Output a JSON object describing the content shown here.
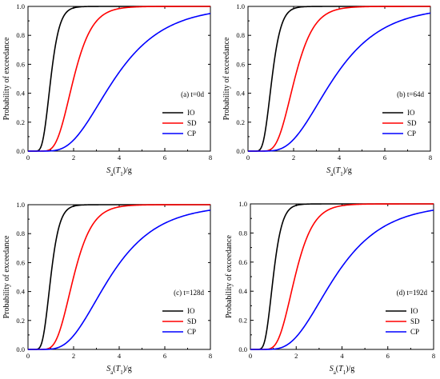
{
  "chart_data": [
    {
      "type": "line",
      "annotation": "(a) t=0d",
      "xlabel": {
        "base": "S",
        "sub1": "a",
        "mid": "(T",
        "sub2": "1",
        "end": ")/g"
      },
      "ylabel": "Probability of  exceedance",
      "xlim": [
        0,
        8
      ],
      "ylim": [
        0,
        1.0
      ],
      "xticks": [
        "0",
        "2",
        "4",
        "6",
        "8"
      ],
      "yticks": [
        "0.0",
        "0.2",
        "0.4",
        "0.6",
        "0.8",
        "1.0"
      ],
      "grid": false,
      "legend_position": "lower-right",
      "series": [
        {
          "name": "IO",
          "color": "#000000",
          "median": 1.0,
          "beta": 0.3
        },
        {
          "name": "SD",
          "color": "#ff0000",
          "median": 2.0,
          "beta": 0.32
        },
        {
          "name": "CP",
          "color": "#0000ff",
          "median": 3.8,
          "beta": 0.45
        }
      ]
    },
    {
      "type": "line",
      "annotation": "(b) t=64d",
      "xlabel": {
        "base": "S",
        "sub1": "a",
        "mid": "(T",
        "sub2": "1",
        "end": ")/g"
      },
      "ylabel": "Probability of  exceedance",
      "xlim": [
        0,
        8
      ],
      "ylim": [
        0,
        1.0
      ],
      "xticks": [
        "0",
        "2",
        "4",
        "6",
        "8"
      ],
      "yticks": [
        "0.0",
        "0.2",
        "0.4",
        "0.6",
        "0.8",
        "1.0"
      ],
      "grid": false,
      "legend_position": "lower-right",
      "series": [
        {
          "name": "IO",
          "color": "#000000",
          "median": 1.05,
          "beta": 0.3
        },
        {
          "name": "SD",
          "color": "#ff0000",
          "median": 2.05,
          "beta": 0.32
        },
        {
          "name": "CP",
          "color": "#0000ff",
          "median": 3.75,
          "beta": 0.45
        }
      ]
    },
    {
      "type": "line",
      "annotation": "(c) t=128d",
      "xlabel": {
        "base": "S",
        "sub1": "a",
        "mid": "(T",
        "sub2": "1",
        "end": ")/g"
      },
      "ylabel": "Probability of  exceedance",
      "xlim": [
        0,
        8
      ],
      "ylim": [
        0,
        1.0
      ],
      "xticks": [
        "0",
        "2",
        "4",
        "6",
        "8"
      ],
      "yticks": [
        "0.0",
        "0.2",
        "0.4",
        "0.6",
        "0.8",
        "1.0"
      ],
      "grid": false,
      "legend_position": "lower-right",
      "series": [
        {
          "name": "IO",
          "color": "#000000",
          "median": 1.0,
          "beta": 0.3
        },
        {
          "name": "SD",
          "color": "#ff0000",
          "median": 2.0,
          "beta": 0.32
        },
        {
          "name": "CP",
          "color": "#0000ff",
          "median": 3.6,
          "beta": 0.45
        }
      ]
    },
    {
      "type": "line",
      "annotation": "(d) t=192d",
      "xlabel": {
        "base": "S",
        "sub1": "a",
        "mid": "(T",
        "sub2": "1",
        "end": ")/g"
      },
      "ylabel": "Probability of  exceedance",
      "xlim": [
        0,
        8
      ],
      "ylim": [
        0,
        1.0
      ],
      "xticks": [
        "0",
        "2",
        "4",
        "6",
        "8"
      ],
      "yticks": [
        "0.0",
        "0.2",
        "0.4",
        "0.6",
        "0.8",
        "1.0"
      ],
      "grid": false,
      "legend_position": "lower-right",
      "series": [
        {
          "name": "IO",
          "color": "#000000",
          "median": 1.0,
          "beta": 0.3
        },
        {
          "name": "SD",
          "color": "#ff0000",
          "median": 1.95,
          "beta": 0.32
        },
        {
          "name": "CP",
          "color": "#0000ff",
          "median": 3.7,
          "beta": 0.45
        }
      ]
    }
  ]
}
